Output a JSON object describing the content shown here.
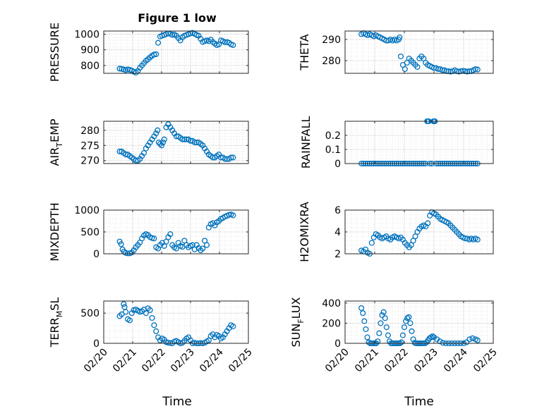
{
  "figure": {
    "title": "Figure 1 low",
    "xlabel_left": "Time",
    "xlabel_right": "Time",
    "x_tick_labels": [
      "02/20",
      "02/21",
      "02/22",
      "02/23",
      "02/24",
      "02/25"
    ]
  },
  "chart_data": [
    {
      "type": "scatter",
      "id": "pressure",
      "ylabel": "PRESSURE",
      "xlim": [
        0,
        5
      ],
      "ylim": [
        750,
        1020
      ],
      "yticks": [
        800,
        900,
        1000
      ],
      "series": [
        {
          "color": "#0072BD",
          "x": [
            0.55,
            0.62,
            0.69,
            0.76,
            0.83,
            0.9,
            0.97,
            1.04,
            1.11,
            1.18,
            1.25,
            1.32,
            1.39,
            1.46,
            1.53,
            1.6,
            1.67,
            1.74,
            1.81,
            1.88,
            1.95,
            2.02,
            2.09,
            2.16,
            2.23,
            2.3,
            2.37,
            2.44,
            2.51,
            2.58,
            2.65,
            2.72,
            2.79,
            2.86,
            2.93,
            3.0,
            3.07,
            3.14,
            3.21,
            3.28,
            3.35,
            3.42,
            3.49,
            3.56,
            3.63,
            3.7,
            3.77,
            3.84,
            3.91,
            3.98,
            4.05,
            4.12,
            4.19,
            4.26,
            4.33,
            4.4,
            4.47
          ],
          "y": [
            780,
            778,
            775,
            770,
            775,
            772,
            768,
            760,
            755,
            765,
            785,
            800,
            815,
            830,
            840,
            852,
            862,
            870,
            872,
            945,
            985,
            990,
            995,
            1000,
            1005,
            1002,
            995,
            998,
            990,
            975,
            960,
            980,
            990,
            995,
            1000,
            1005,
            1008,
            1002,
            995,
            990,
            970,
            950,
            955,
            960,
            955,
            965,
            950,
            940,
            930,
            935,
            960,
            955,
            948,
            950,
            945,
            935,
            930
          ]
        }
      ]
    },
    {
      "type": "scatter",
      "id": "theta",
      "ylabel": "THETA",
      "xlim": [
        0,
        5
      ],
      "ylim": [
        274,
        294
      ],
      "yticks": [
        280,
        290
      ],
      "series": [
        {
          "color": "#0072BD",
          "x": [
            0.55,
            0.62,
            0.69,
            0.76,
            0.83,
            0.9,
            0.97,
            1.04,
            1.11,
            1.18,
            1.25,
            1.32,
            1.39,
            1.46,
            1.53,
            1.6,
            1.67,
            1.74,
            1.81,
            1.84,
            1.88,
            1.95,
            2.02,
            2.09,
            2.16,
            2.23,
            2.3,
            2.37,
            2.44,
            2.51,
            2.58,
            2.65,
            2.72,
            2.79,
            2.86,
            2.93,
            3.0,
            3.07,
            3.14,
            3.21,
            3.28,
            3.35,
            3.42,
            3.49,
            3.56,
            3.63,
            3.7,
            3.77,
            3.84,
            3.91,
            3.98,
            4.05,
            4.12,
            4.19,
            4.26,
            4.33,
            4.4,
            4.47
          ],
          "y": [
            292.5,
            293,
            292.5,
            292,
            292.5,
            292,
            291.5,
            292,
            291.5,
            291,
            290.5,
            290,
            289.5,
            289.5,
            290,
            289.5,
            290,
            289.5,
            290,
            291,
            282,
            278,
            276,
            279,
            281,
            280,
            279,
            278,
            277,
            281,
            282,
            281,
            279,
            278,
            277.5,
            277,
            276.5,
            276.5,
            276,
            276,
            275.5,
            275.5,
            275,
            275,
            274.8,
            275,
            275.5,
            275,
            274.8,
            275,
            275.2,
            275,
            274.8,
            275,
            275,
            275.5,
            276,
            275.8
          ]
        }
      ]
    },
    {
      "type": "scatter",
      "id": "air_temp",
      "ylabel": "AIR",
      "ylabel_sub": "T",
      "ylabel_after": "EMP",
      "xlim": [
        0,
        5
      ],
      "ylim": [
        269,
        283
      ],
      "yticks": [
        270,
        275,
        280
      ],
      "series": [
        {
          "color": "#0072BD",
          "x": [
            0.55,
            0.62,
            0.69,
            0.76,
            0.83,
            0.9,
            0.97,
            1.04,
            1.11,
            1.18,
            1.25,
            1.32,
            1.39,
            1.46,
            1.53,
            1.6,
            1.67,
            1.74,
            1.81,
            1.86,
            1.9,
            1.95,
            2.0,
            2.05,
            2.09,
            2.16,
            2.23,
            2.3,
            2.37,
            2.44,
            2.51,
            2.58,
            2.65,
            2.72,
            2.79,
            2.86,
            2.93,
            3.0,
            3.07,
            3.14,
            3.21,
            3.28,
            3.35,
            3.42,
            3.49,
            3.56,
            3.63,
            3.7,
            3.77,
            3.84,
            3.91,
            3.98,
            4.05,
            4.12,
            4.19,
            4.26,
            4.33,
            4.4,
            4.47
          ],
          "y": [
            273,
            273,
            272.5,
            272,
            272,
            271.5,
            271,
            270.5,
            270,
            270,
            270.5,
            271.5,
            272.5,
            274,
            275,
            276,
            277,
            278,
            279,
            280,
            276,
            275.5,
            275,
            276,
            277,
            281,
            282,
            281,
            280,
            279,
            278,
            278,
            277.5,
            277,
            277,
            277,
            277,
            276.5,
            276.5,
            276,
            276,
            276,
            275.5,
            275,
            274,
            273,
            272,
            271.5,
            271,
            271,
            271.5,
            272,
            271,
            271,
            270.5,
            270.5,
            270.5,
            271,
            271
          ]
        }
      ]
    },
    {
      "type": "scatter",
      "id": "rainfall",
      "ylabel": "RAINFALL",
      "xlim": [
        0,
        5
      ],
      "ylim": [
        0,
        0.3
      ],
      "yticks": [
        0,
        0.1,
        0.2
      ],
      "series": [
        {
          "color": "#0072BD",
          "x": [
            0.55,
            0.62,
            0.69,
            0.76,
            0.83,
            0.9,
            0.97,
            1.04,
            1.11,
            1.18,
            1.25,
            1.32,
            1.39,
            1.46,
            1.53,
            1.6,
            1.67,
            1.74,
            1.81,
            1.88,
            1.95,
            2.02,
            2.09,
            2.16,
            2.23,
            2.3,
            2.37,
            2.44,
            2.51,
            2.58,
            2.65,
            2.72,
            2.77,
            2.79,
            2.82,
            2.86,
            2.93,
            2.98,
            3.0,
            3.03,
            3.07,
            3.14,
            3.21,
            3.28,
            3.35,
            3.42,
            3.49,
            3.56,
            3.63,
            3.7,
            3.77,
            3.84,
            3.91,
            3.98,
            4.05,
            4.12,
            4.19,
            4.26,
            4.33,
            4.4,
            4.47
          ],
          "y": [
            0,
            0,
            0,
            0,
            0,
            0,
            0,
            0,
            0,
            0,
            0,
            0,
            0,
            0,
            0,
            0,
            0,
            0,
            0,
            0,
            0,
            0,
            0,
            0,
            0,
            0,
            0,
            0,
            0,
            0,
            0,
            0,
            0.3,
            0.3,
            0.3,
            0,
            0,
            0.3,
            0.3,
            0.3,
            0,
            0,
            0,
            0,
            0,
            0,
            0,
            0,
            0,
            0,
            0,
            0,
            0,
            0,
            0,
            0,
            0,
            0,
            0,
            0,
            0
          ]
        }
      ]
    },
    {
      "type": "scatter",
      "id": "mixdepth",
      "ylabel": "MIXDEPTH",
      "xlim": [
        0,
        5
      ],
      "ylim": [
        0,
        1000
      ],
      "yticks": [
        0,
        500,
        1000
      ],
      "series": [
        {
          "color": "#0072BD",
          "x": [
            0.55,
            0.6,
            0.65,
            0.7,
            0.76,
            0.83,
            0.9,
            0.97,
            1.04,
            1.11,
            1.18,
            1.25,
            1.32,
            1.39,
            1.46,
            1.53,
            1.6,
            1.67,
            1.74,
            1.81,
            1.88,
            1.95,
            2.02,
            2.09,
            2.16,
            2.23,
            2.3,
            2.37,
            2.44,
            2.51,
            2.58,
            2.65,
            2.72,
            2.79,
            2.86,
            2.93,
            3.0,
            3.07,
            3.14,
            3.21,
            3.28,
            3.35,
            3.42,
            3.49,
            3.56,
            3.63,
            3.7,
            3.77,
            3.84,
            3.91,
            3.98,
            4.05,
            4.12,
            4.19,
            4.26,
            4.33,
            4.4,
            4.47
          ],
          "y": [
            280,
            220,
            100,
            50,
            20,
            10,
            10,
            30,
            80,
            150,
            200,
            260,
            350,
            420,
            450,
            430,
            380,
            360,
            350,
            150,
            120,
            200,
            250,
            180,
            280,
            380,
            450,
            200,
            150,
            120,
            250,
            180,
            160,
            300,
            200,
            150,
            180,
            200,
            100,
            200,
            130,
            80,
            120,
            300,
            200,
            600,
            680,
            700,
            650,
            720,
            750,
            800,
            820,
            850,
            870,
            890,
            900,
            880
          ]
        }
      ]
    },
    {
      "type": "scatter",
      "id": "h2omixra",
      "ylabel": "H2OMIXRA",
      "xlim": [
        0,
        5
      ],
      "ylim": [
        2,
        6
      ],
      "yticks": [
        2,
        4,
        6
      ],
      "series": [
        {
          "color": "#0072BD",
          "x": [
            0.55,
            0.62,
            0.69,
            0.76,
            0.83,
            0.9,
            0.97,
            1.04,
            1.11,
            1.18,
            1.25,
            1.32,
            1.39,
            1.46,
            1.53,
            1.6,
            1.67,
            1.74,
            1.81,
            1.88,
            1.95,
            2.02,
            2.09,
            2.16,
            2.23,
            2.3,
            2.37,
            2.44,
            2.51,
            2.58,
            2.65,
            2.72,
            2.79,
            2.86,
            2.93,
            3.0,
            3.07,
            3.14,
            3.21,
            3.28,
            3.35,
            3.42,
            3.49,
            3.56,
            3.63,
            3.7,
            3.77,
            3.84,
            3.91,
            3.98,
            4.05,
            4.12,
            4.19,
            4.26,
            4.33,
            4.4,
            4.47
          ],
          "y": [
            2.3,
            2.2,
            2.4,
            2.1,
            2.0,
            3.0,
            3.5,
            3.8,
            3.7,
            3.5,
            3.4,
            3.5,
            3.6,
            3.4,
            3.3,
            3.5,
            3.6,
            3.5,
            3.4,
            3.5,
            3.3,
            3.0,
            2.8,
            2.6,
            2.8,
            3.2,
            3.6,
            4.0,
            4.3,
            4.5,
            4.6,
            4.5,
            4.8,
            5.5,
            5.8,
            5.7,
            5.6,
            5.4,
            5.2,
            5.1,
            5.0,
            4.9,
            4.8,
            4.6,
            4.4,
            4.2,
            4.0,
            3.8,
            3.6,
            3.5,
            3.4,
            3.4,
            3.3,
            3.4,
            3.3,
            3.4,
            3.3
          ]
        }
      ]
    },
    {
      "type": "scatter",
      "id": "terr_msl",
      "ylabel": "TERR",
      "ylabel_sub": "M",
      "ylabel_after": "SL",
      "xlim": [
        0,
        5
      ],
      "ylim": [
        0,
        700
      ],
      "yticks": [
        0,
        500
      ],
      "series": [
        {
          "color": "#0072BD",
          "x": [
            0.55,
            0.62,
            0.69,
            0.72,
            0.76,
            0.83,
            0.9,
            0.97,
            1.04,
            1.11,
            1.18,
            1.25,
            1.32,
            1.39,
            1.46,
            1.53,
            1.6,
            1.67,
            1.74,
            1.81,
            1.88,
            1.95,
            2.02,
            2.09,
            2.16,
            2.23,
            2.3,
            2.37,
            2.44,
            2.51,
            2.58,
            2.65,
            2.72,
            2.79,
            2.86,
            2.93,
            3.0,
            3.07,
            3.14,
            3.21,
            3.28,
            3.35,
            3.42,
            3.49,
            3.56,
            3.63,
            3.7,
            3.77,
            3.84,
            3.91,
            3.98,
            4.05,
            4.12,
            4.19,
            4.26,
            4.33,
            4.4,
            4.47
          ],
          "y": [
            450,
            480,
            650,
            600,
            520,
            400,
            380,
            500,
            550,
            560,
            540,
            520,
            530,
            560,
            500,
            580,
            550,
            420,
            300,
            200,
            100,
            50,
            80,
            60,
            20,
            10,
            5,
            0,
            30,
            40,
            20,
            0,
            10,
            40,
            80,
            100,
            50,
            0,
            10,
            0,
            0,
            5,
            0,
            10,
            30,
            50,
            120,
            150,
            100,
            140,
            120,
            80,
            100,
            150,
            200,
            250,
            300,
            280
          ]
        }
      ]
    },
    {
      "type": "scatter",
      "id": "sun_flux",
      "ylabel": "SUN",
      "ylabel_sub": "F",
      "ylabel_after": "LUX",
      "xlim": [
        0,
        5
      ],
      "ylim": [
        0,
        420
      ],
      "yticks": [
        0,
        200,
        400
      ],
      "series": [
        {
          "color": "#0072BD",
          "x": [
            0.55,
            0.6,
            0.65,
            0.7,
            0.75,
            0.8,
            0.85,
            0.9,
            0.95,
            1.0,
            1.05,
            1.1,
            1.15,
            1.2,
            1.25,
            1.3,
            1.35,
            1.4,
            1.45,
            1.5,
            1.55,
            1.6,
            1.65,
            1.7,
            1.75,
            1.8,
            1.85,
            1.9,
            1.95,
            2.0,
            2.05,
            2.1,
            2.15,
            2.2,
            2.25,
            2.3,
            2.35,
            2.4,
            2.45,
            2.5,
            2.55,
            2.6,
            2.65,
            2.7,
            2.75,
            2.8,
            2.85,
            2.9,
            2.95,
            3.0,
            3.1,
            3.2,
            3.3,
            3.4,
            3.5,
            3.6,
            3.7,
            3.8,
            3.9,
            4.0,
            4.1,
            4.2,
            4.3,
            4.4,
            4.47
          ],
          "y": [
            350,
            300,
            220,
            140,
            60,
            10,
            0,
            0,
            0,
            0,
            0,
            20,
            100,
            200,
            280,
            310,
            250,
            160,
            80,
            20,
            0,
            0,
            0,
            0,
            0,
            0,
            0,
            10,
            80,
            160,
            220,
            250,
            260,
            200,
            120,
            40,
            5,
            0,
            0,
            0,
            0,
            0,
            0,
            0,
            10,
            30,
            50,
            60,
            70,
            60,
            40,
            20,
            5,
            0,
            0,
            0,
            0,
            0,
            0,
            0,
            10,
            40,
            50,
            40,
            30
          ]
        }
      ]
    }
  ]
}
